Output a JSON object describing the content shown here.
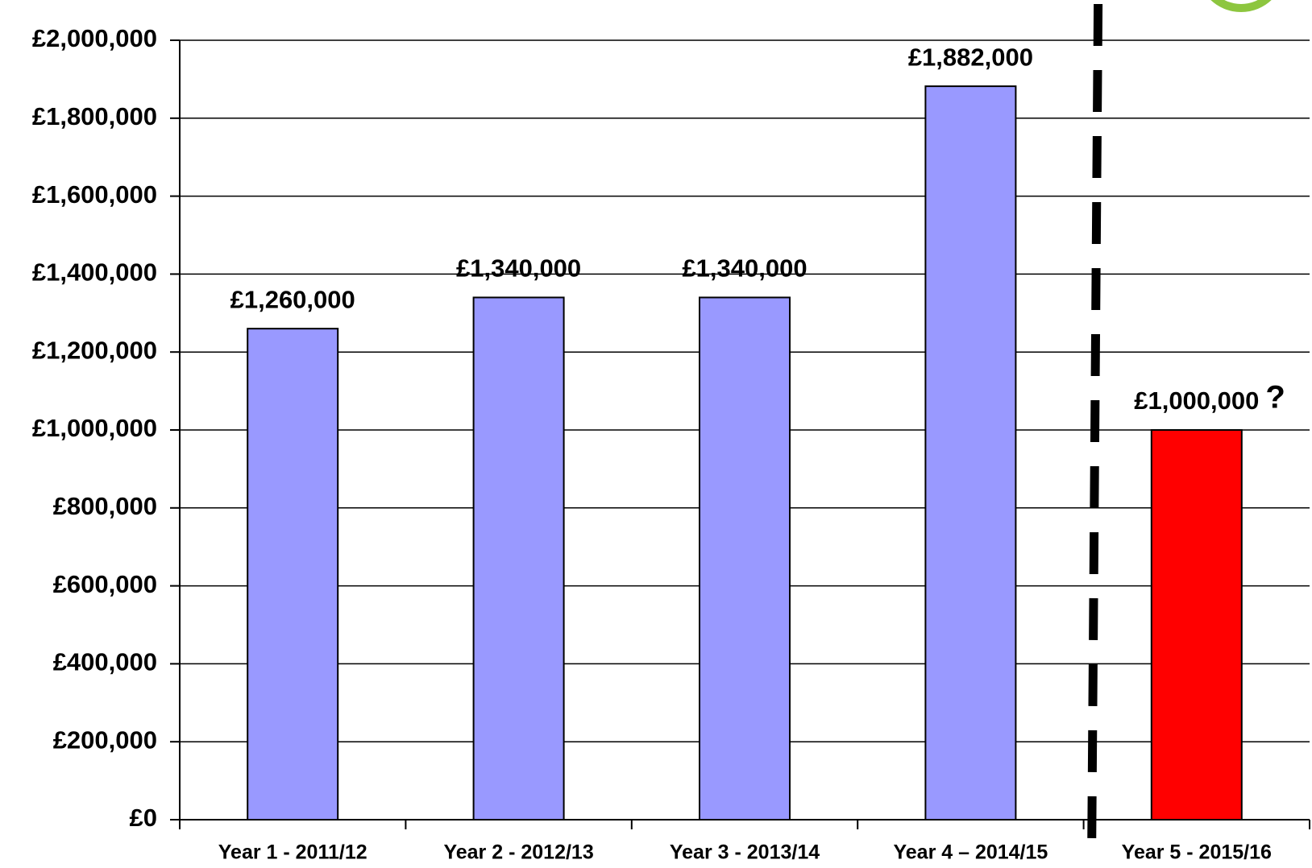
{
  "chart_data": {
    "type": "bar",
    "categories": [
      "Year 1 - 2011/12",
      "Year 2 - 2012/13",
      "Year 3 - 2013/14",
      "Year 4 – 2014/15",
      "Year 5 - 2015/16"
    ],
    "values": [
      1260000,
      1340000,
      1340000,
      1882000,
      1000000
    ],
    "value_labels": [
      "£1,260,000",
      "£1,340,000",
      "£1,340,000",
      "£1,882,000",
      "£1,000,000"
    ],
    "colors": [
      "#9999ff",
      "#9999ff",
      "#9999ff",
      "#9999ff",
      "#ff0000"
    ],
    "annotation": "?",
    "ylim": [
      0,
      2000000
    ],
    "yticks": [
      {
        "value": 0,
        "label": "£0"
      },
      {
        "value": 200000,
        "label": "£200,000"
      },
      {
        "value": 400000,
        "label": "£400,000"
      },
      {
        "value": 600000,
        "label": "£600,000"
      },
      {
        "value": 800000,
        "label": "£800,000"
      },
      {
        "value": 1000000,
        "label": "£1,000,000"
      },
      {
        "value": 1200000,
        "label": "£1,200,000"
      },
      {
        "value": 1400000,
        "label": "£1,400,000"
      },
      {
        "value": 1600000,
        "label": "£1,600,000"
      },
      {
        "value": 1800000,
        "label": "£1,800,000"
      },
      {
        "value": 2000000,
        "label": "£2,000,000"
      }
    ],
    "grid": true
  }
}
